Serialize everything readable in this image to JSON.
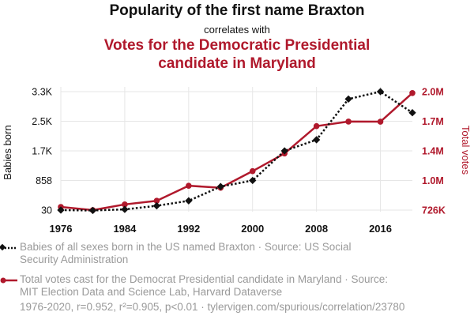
{
  "header": {
    "title": "Popularity of the first name Braxton",
    "correlates": "correlates with",
    "title2": "Votes for the Democratic Presidential candidate in Maryland"
  },
  "colors": {
    "series1": "#111111",
    "series2": "#b0192c",
    "legend_text": "#9a9a9a"
  },
  "chart_data": {
    "type": "line",
    "x": [
      1976,
      1980,
      1984,
      1988,
      1992,
      1996,
      2000,
      2004,
      2008,
      2012,
      2016,
      2020
    ],
    "xlim": [
      1976,
      2020
    ],
    "x_tick_values": [
      1976,
      1984,
      1992,
      2000,
      2008,
      2016
    ],
    "x_tick_labels": [
      "1976",
      "1984",
      "1992",
      "2000",
      "2008",
      "2016"
    ],
    "y_left": {
      "label": "Babies born",
      "tick_values": [
        30,
        858,
        1700,
        2500,
        3300
      ],
      "tick_labels": [
        "30",
        "858",
        "1.7K",
        "2.5K",
        "3.3K"
      ],
      "range": [
        30,
        3300
      ]
    },
    "y_right": {
      "label": "Total votes",
      "tick_values": [
        726000,
        1000000,
        1400000,
        1700000,
        2000000
      ],
      "tick_labels": [
        "726K",
        "1.0M",
        "1.4M",
        "1.7M",
        "2.0M"
      ],
      "range": [
        726000,
        2000000
      ]
    },
    "series": [
      {
        "name": "Babies of all sexes born in the US named Braxton",
        "axis": "left",
        "marker": "diamond",
        "line": "dotted",
        "values": [
          30,
          20,
          50,
          150,
          290,
          688,
          858,
          1700,
          2000,
          3100,
          3320,
          2730
        ]
      },
      {
        "name": "Total votes cast for the Democrat Presidential candidate in Maryland",
        "axis": "right",
        "marker": "circle",
        "line": "solid",
        "values": [
          760000,
          726000,
          787000,
          826000,
          988000,
          966000,
          1145000,
          1335000,
          1629000,
          1678000,
          1677000,
          1985000
        ]
      }
    ]
  },
  "legend": {
    "item1": "Babies of all sexes born in the US named Braxton · Source: US Social Security Administration",
    "item2": "Total votes cast for the Democrat Presidential candidate in Maryland · Source: MIT Election Data and Science Lab, Harvard Dataverse"
  },
  "footer": "1976-2020, r=0.952, r²=0.905, p<0.01 · tylervigen.com/spurious/correlation/23780"
}
